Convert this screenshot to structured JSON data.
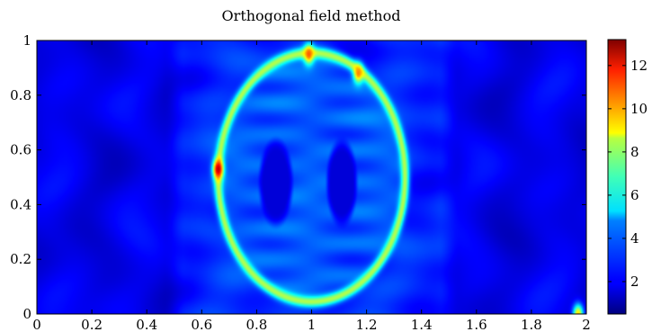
{
  "chart_data": {
    "type": "heatmap",
    "title": "Orthogonal field method",
    "xlabel": "",
    "ylabel": "",
    "xlim": [
      0,
      2
    ],
    "ylim": [
      0,
      1
    ],
    "x_ticks": [
      0,
      0.2,
      0.4,
      0.6,
      0.8,
      1,
      1.2,
      1.4,
      1.6,
      1.8,
      2
    ],
    "x_tick_labels": [
      "0",
      "0.2",
      "0.4",
      "0.6",
      "0.8",
      "1",
      "1.2",
      "1.4",
      "1.6",
      "1.8",
      "2"
    ],
    "y_ticks": [
      0,
      0.2,
      0.4,
      0.6,
      0.8,
      1
    ],
    "y_tick_labels": [
      "0",
      "0.2",
      "0.4",
      "0.6",
      "0.8",
      "1"
    ],
    "colormap": "jet",
    "colorbar": {
      "vmin": 0.5,
      "vmax": 13.2,
      "ticks": [
        2,
        4,
        6,
        8,
        10,
        12
      ],
      "tick_labels": [
        "2",
        "4",
        "6",
        "8",
        "10",
        "12"
      ]
    },
    "features": {
      "background_level": 1.8,
      "central_band": {
        "x_range": [
          0.5,
          1.5
        ],
        "level": 2.8
      },
      "ellipse": {
        "center": [
          1.0,
          0.5
        ],
        "semi_axis_x": 0.34,
        "semi_axis_y": 0.455,
        "rim_level": 7.5,
        "interior_level": 3.6
      },
      "dark_lobes": [
        {
          "center": [
            0.87,
            0.48
          ],
          "semi_axis_x": 0.055,
          "semi_axis_y": 0.14,
          "level": 1.6
        },
        {
          "center": [
            1.11,
            0.48
          ],
          "semi_axis_x": 0.05,
          "semi_axis_y": 0.14,
          "level": 1.6
        }
      ],
      "hot_spots": [
        {
          "x": 0.66,
          "y": 0.53,
          "value": 12.5
        },
        {
          "x": 0.99,
          "y": 0.95,
          "value": 10.5
        },
        {
          "x": 1.17,
          "y": 0.88,
          "value": 10.0
        },
        {
          "x": 1.97,
          "y": 0.0,
          "value": 9.0
        }
      ]
    }
  }
}
